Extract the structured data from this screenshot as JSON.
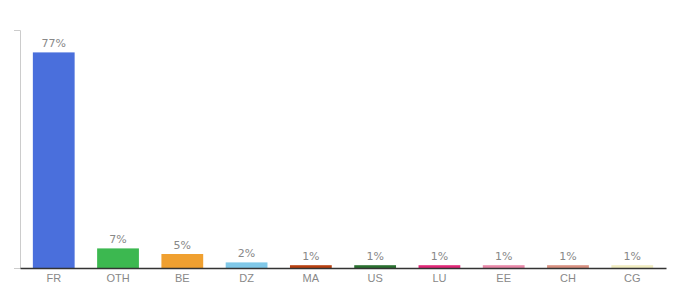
{
  "chart_data": {
    "type": "bar",
    "categories": [
      "FR",
      "OTH",
      "BE",
      "DZ",
      "MA",
      "US",
      "LU",
      "EE",
      "CH",
      "CG"
    ],
    "values": [
      77,
      7,
      5,
      2,
      1,
      1,
      1,
      1,
      1,
      1
    ],
    "value_labels": [
      "77%",
      "7%",
      "5%",
      "2%",
      "1%",
      "1%",
      "1%",
      "1%",
      "1%",
      "1%"
    ],
    "colors": [
      "#4a6fdc",
      "#3cb850",
      "#f0a030",
      "#80c8e8",
      "#b84010",
      "#2a7030",
      "#e02878",
      "#e888a8",
      "#d89080",
      "#f0ecc0"
    ],
    "ylim": [
      0,
      85
    ],
    "grid": false,
    "data_labels": true,
    "tick_labels": "x"
  }
}
